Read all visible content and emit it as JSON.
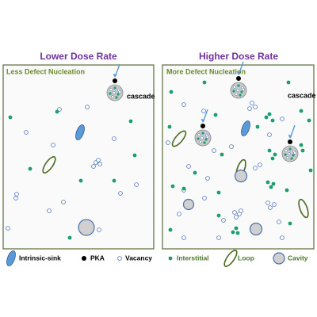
{
  "panels": [
    {
      "title": "Lower Dose Rate",
      "label": "Less Defect Nucleation",
      "cascade_label": "cascade"
    },
    {
      "title": "Higher Dose Rate",
      "label": "More Defect Nucleation",
      "cascade_label": "cascade"
    }
  ],
  "legend": [
    {
      "label": "Intrinsic-sink"
    },
    {
      "label": "PKA"
    },
    {
      "label": "Vacancy"
    },
    {
      "label": "Interstitial"
    },
    {
      "label": "Loop"
    },
    {
      "label": "Cavity"
    }
  ]
}
